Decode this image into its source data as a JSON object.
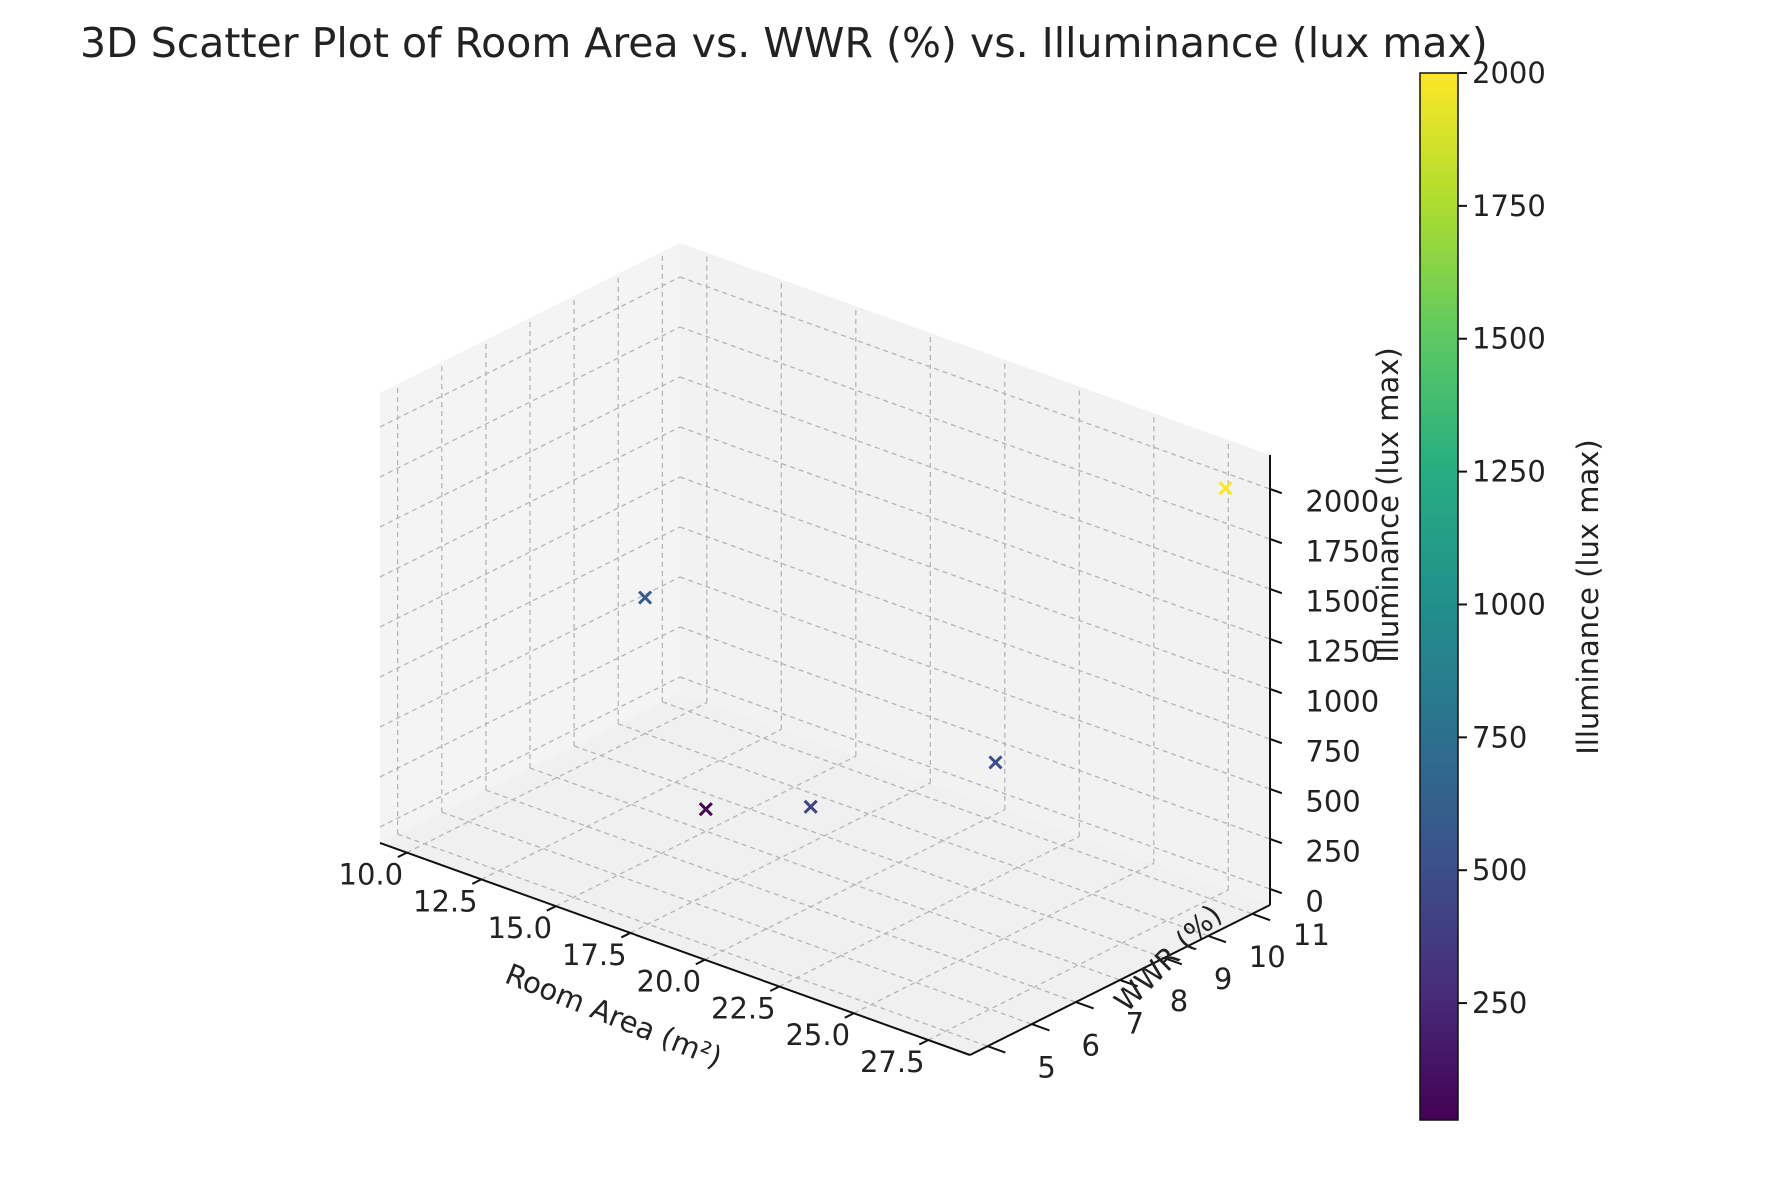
{
  "chart_data": {
    "type": "scatter",
    "title": "3D Scatter Plot of Room Area vs. WWR (%) vs. Illuminance (lux max)",
    "xlabel": "Room Area (m²)",
    "ylabel": "WWR (%)",
    "zlabel": "Illuminance (lux max)",
    "colorbar_label": "Illuminance (lux max)",
    "colormap": "viridis",
    "marker": "x",
    "grid": true,
    "x_ticks": [
      "10.0",
      "12.5",
      "15.0",
      "17.5",
      "20.0",
      "22.5",
      "25.0",
      "27.5"
    ],
    "y_ticks": [
      "5",
      "6",
      "7",
      "8",
      "9",
      "10",
      "11"
    ],
    "z_ticks": [
      "0",
      "250",
      "500",
      "750",
      "1000",
      "1250",
      "1500",
      "1750",
      "2000"
    ],
    "colorbar_ticks": [
      "250",
      "500",
      "750",
      "1000",
      "1250",
      "1500",
      "1750",
      "2000"
    ],
    "colorbar_range": [
      30,
      2000
    ],
    "points": [
      {
        "x": 10.0,
        "y": 10.0,
        "z": 600
      },
      {
        "x": 28.0,
        "y": 11.0,
        "z": 2000
      },
      {
        "x": 15.0,
        "y": 8.0,
        "z": 30
      },
      {
        "x": 22.5,
        "y": 9.5,
        "z": 500
      },
      {
        "x": 20.0,
        "y": 7.0,
        "z": 420
      }
    ]
  }
}
